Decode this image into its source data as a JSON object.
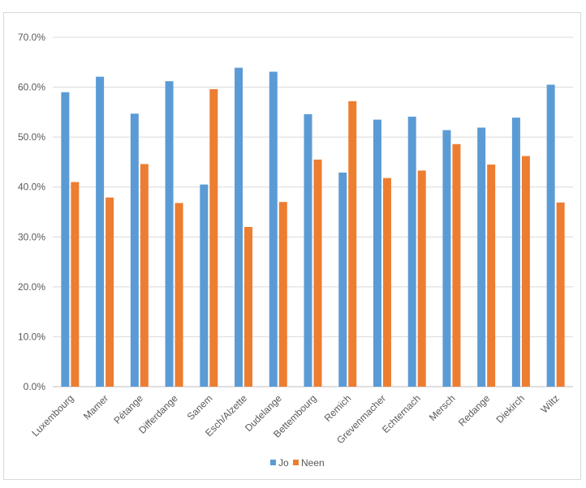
{
  "chart_data": {
    "type": "bar",
    "categories": [
      "Luxembourg",
      "Mamer",
      "Pétange",
      "Differdange",
      "Sanem",
      "Esch/Alzette",
      "Dudelange",
      "Bettembourg",
      "Remich",
      "Grevenmacher",
      "Echternach",
      "Mersch",
      "Redange",
      "Diekirch",
      "Wiltz"
    ],
    "series": [
      {
        "name": "Jo",
        "color": "#5b9bd5",
        "values": [
          59.0,
          62.1,
          54.7,
          61.2,
          40.5,
          63.9,
          63.1,
          54.6,
          42.9,
          53.5,
          54.1,
          51.4,
          51.9,
          53.9,
          60.5
        ]
      },
      {
        "name": "Neen",
        "color": "#ed7d31",
        "values": [
          41.0,
          37.9,
          44.6,
          36.8,
          59.6,
          32.0,
          37.0,
          45.5,
          57.2,
          41.8,
          43.3,
          48.6,
          44.5,
          46.2,
          36.9
        ]
      }
    ],
    "yticks": [
      "0.0%",
      "10.0%",
      "20.0%",
      "30.0%",
      "40.0%",
      "50.0%",
      "60.0%",
      "70.0%"
    ],
    "ylim": [
      0,
      70
    ],
    "title": "",
    "xlabel": "",
    "ylabel": "",
    "grid": true,
    "legend": "bottom-center"
  }
}
